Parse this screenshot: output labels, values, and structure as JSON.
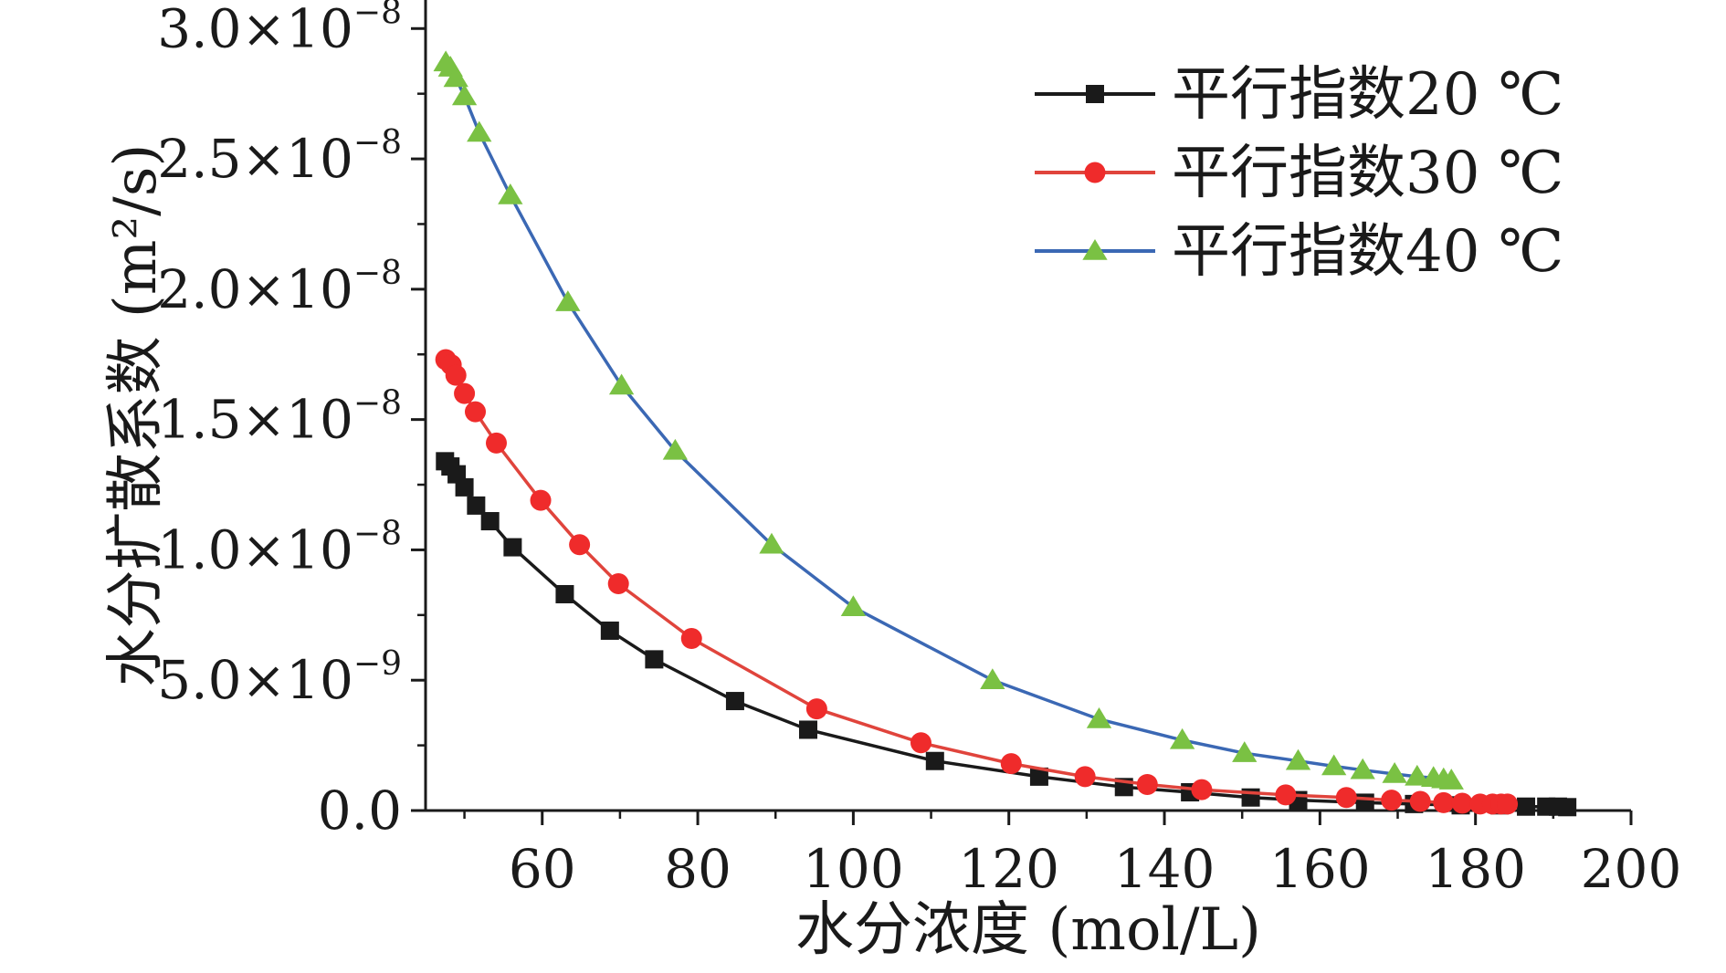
{
  "chart_data": {
    "type": "line",
    "xlabel": "水分浓度 (mol/L)",
    "ylabel": "水分扩散系数 (m²/s)",
    "xlim": [
      45,
      200
    ],
    "ylim": [
      0,
      3.05e-08
    ],
    "x_ticks": [
      60,
      80,
      100,
      120,
      140,
      160,
      180,
      200
    ],
    "x_tick_labels": [
      "60",
      "80",
      "100",
      "120",
      "140",
      "160",
      "180",
      "200"
    ],
    "y_ticks": [
      0,
      5e-09,
      1e-08,
      1.5e-08,
      2e-08,
      2.5e-08,
      3e-08
    ],
    "y_tick_labels": [
      {
        "mant": "0.0",
        "exp": ""
      },
      {
        "mant": "5.0×10",
        "exp": "−9"
      },
      {
        "mant": "1.0×10",
        "exp": "−8"
      },
      {
        "mant": "1.5×10",
        "exp": "−8"
      },
      {
        "mant": "2.0×10",
        "exp": "−8"
      },
      {
        "mant": "2.5×10",
        "exp": "−8"
      },
      {
        "mant": "3.0×10",
        "exp": "−8"
      }
    ],
    "grid": false,
    "legend_position": "top-right",
    "series": [
      {
        "name": "平行指数20 ℃",
        "marker": "square",
        "line_color": "#1a1a1a",
        "marker_color": "#1a1a1a",
        "points": [
          [
            47.5,
            1.34e-08
          ],
          [
            48.2,
            1.32e-08
          ],
          [
            49.0,
            1.29e-08
          ],
          [
            50.0,
            1.24e-08
          ],
          [
            51.5,
            1.17e-08
          ],
          [
            53.3,
            1.11e-08
          ],
          [
            56.2,
            1.01e-08
          ],
          [
            62.9,
            8.3e-09
          ],
          [
            68.7,
            6.9e-09
          ],
          [
            74.4,
            5.8e-09
          ],
          [
            84.8,
            4.2e-09
          ],
          [
            94.2,
            3.1e-09
          ],
          [
            110.5,
            1.9e-09
          ],
          [
            123.9,
            1.3e-09
          ],
          [
            134.8,
            9e-10
          ],
          [
            143.3,
            7e-10
          ],
          [
            151.1,
            5e-10
          ],
          [
            157.2,
            4e-10
          ],
          [
            165.8,
            3e-10
          ],
          [
            172.1,
            2.5e-10
          ],
          [
            178.1,
            2e-10
          ],
          [
            183.1,
            2e-10
          ],
          [
            186.5,
            1.5e-10
          ],
          [
            189.1,
            1.5e-10
          ],
          [
            190.6,
            1.5e-10
          ],
          [
            191.8,
            1.3e-10
          ]
        ]
      },
      {
        "name": "平行指数30 ℃",
        "marker": "circle",
        "line_color": "#e0443c",
        "marker_color": "#ef2b2b",
        "points": [
          [
            47.6,
            1.73e-08
          ],
          [
            48.3,
            1.71e-08
          ],
          [
            48.9,
            1.67e-08
          ],
          [
            50.0,
            1.6e-08
          ],
          [
            51.4,
            1.53e-08
          ],
          [
            54.1,
            1.41e-08
          ],
          [
            59.8,
            1.19e-08
          ],
          [
            64.8,
            1.02e-08
          ],
          [
            69.8,
            8.7e-09
          ],
          [
            79.2,
            6.6e-09
          ],
          [
            95.3,
            3.9e-09
          ],
          [
            108.7,
            2.6e-09
          ],
          [
            120.3,
            1.8e-09
          ],
          [
            129.8,
            1.3e-09
          ],
          [
            137.8,
            1e-09
          ],
          [
            144.8,
            8e-10
          ],
          [
            155.6,
            6e-10
          ],
          [
            163.4,
            5e-10
          ],
          [
            169.2,
            4e-10
          ],
          [
            172.9,
            3.5e-10
          ],
          [
            175.9,
            3e-10
          ],
          [
            178.3,
            2.8e-10
          ],
          [
            180.6,
            2.5e-10
          ],
          [
            182.2,
            2.5e-10
          ],
          [
            183.3,
            2.5e-10
          ],
          [
            184.1,
            2.5e-10
          ]
        ]
      },
      {
        "name": "平行指数40 ℃",
        "marker": "triangle",
        "line_color": "#3b68b4",
        "marker_color": "#7ac143",
        "points": [
          [
            47.6,
            2.87e-08
          ],
          [
            48.2,
            2.85e-08
          ],
          [
            48.9,
            2.81e-08
          ],
          [
            50.0,
            2.74e-08
          ],
          [
            51.9,
            2.6e-08
          ],
          [
            55.9,
            2.36e-08
          ],
          [
            63.3,
            1.95e-08
          ],
          [
            70.2,
            1.63e-08
          ],
          [
            77.1,
            1.38e-08
          ],
          [
            89.5,
            1.02e-08
          ],
          [
            100.0,
            7.8e-09
          ],
          [
            117.9,
            5e-09
          ],
          [
            131.6,
            3.5e-09
          ],
          [
            142.3,
            2.7e-09
          ],
          [
            150.3,
            2.2e-09
          ],
          [
            157.2,
            1.9e-09
          ],
          [
            161.8,
            1.7e-09
          ],
          [
            165.5,
            1.55e-09
          ],
          [
            169.6,
            1.4e-09
          ],
          [
            172.5,
            1.3e-09
          ],
          [
            174.6,
            1.25e-09
          ],
          [
            175.9,
            1.2e-09
          ],
          [
            176.9,
            1.15e-09
          ]
        ]
      }
    ]
  }
}
